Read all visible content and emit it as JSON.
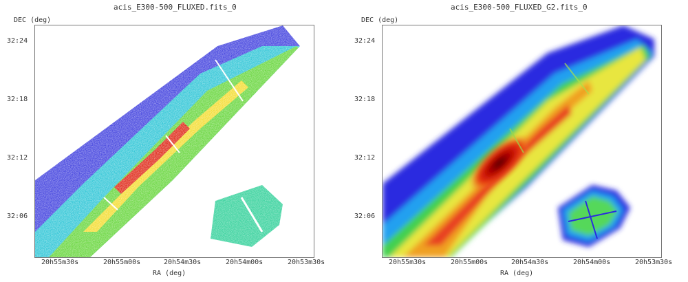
{
  "panels": [
    {
      "title": "acis_E300-500_FLUXED.fits_0",
      "y_axis_label": "DEC (deg)",
      "x_axis_label": "RA (deg)",
      "y_ticks": [
        "32:24",
        "32:18",
        "32:12",
        "32:06"
      ],
      "x_ticks": [
        "20h55m30s",
        "20h55m00s",
        "20h54m30s",
        "20h54m00s",
        "20h53m30s"
      ]
    },
    {
      "title": "acis_E300-500_FLUXED_G2.fits_0",
      "y_axis_label": "DEC (deg)",
      "x_axis_label": "RA (deg)",
      "y_ticks": [
        "32:24",
        "32:18",
        "32:12",
        "32:06"
      ],
      "x_ticks": [
        "20h55m30s",
        "20h55m00s",
        "20h54m30s",
        "20h54m00s",
        "20h53m30s"
      ]
    }
  ],
  "colors": {
    "background": "#ffffff",
    "low": "#3a3ad8",
    "mid": "#35d14a",
    "high": "#ffe236",
    "peak": "#b00000"
  }
}
